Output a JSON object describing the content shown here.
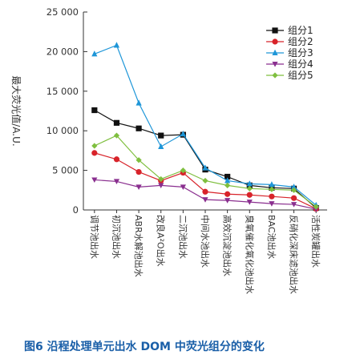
{
  "chart_data": {
    "type": "line",
    "ylabel": "最大荧光值/A.U.",
    "ylim": [
      0,
      25000
    ],
    "yticks": [
      0,
      5000,
      10000,
      15000,
      20000,
      25000
    ],
    "ytick_labels": [
      "0",
      "5 000",
      "10 000",
      "15 000",
      "20 000",
      "25 000"
    ],
    "categories": [
      "调节池出水",
      "初沉池出水",
      "ABR水解池出水",
      "改良A²O出水",
      "二沉池出水",
      "中间水池出水",
      "高效沉淀池出水",
      "臭氧催化氧化池出水",
      "BAC池出水",
      "反硝化深床滤池出水",
      "活性炭罐出水"
    ],
    "legend_position": "top-right",
    "series": [
      {
        "name": "组分1",
        "color": "#111111",
        "marker": "square",
        "values": [
          12600,
          11000,
          10300,
          9400,
          9500,
          5100,
          4200,
          3100,
          2800,
          2700,
          250
        ]
      },
      {
        "name": "组分2",
        "color": "#d8232a",
        "marker": "circle",
        "values": [
          7200,
          6400,
          4800,
          3700,
          4700,
          2300,
          2000,
          1900,
          1700,
          1500,
          150
        ]
      },
      {
        "name": "组分3",
        "color": "#1e96d8",
        "marker": "triangle",
        "values": [
          19700,
          20800,
          13500,
          8000,
          9600,
          5300,
          3700,
          3300,
          3200,
          2900,
          600
        ]
      },
      {
        "name": "组分4",
        "color": "#8a2f8f",
        "marker": "triangle-down",
        "values": [
          3800,
          3600,
          2900,
          3100,
          2900,
          1300,
          1200,
          1000,
          800,
          700,
          100
        ]
      },
      {
        "name": "组分5",
        "color": "#7fbf3f",
        "marker": "diamond",
        "values": [
          8100,
          9400,
          6300,
          3900,
          5000,
          3700,
          3100,
          2700,
          2600,
          2500,
          400
        ]
      }
    ]
  },
  "caption": "图6  沿程处理单元出水 DOM 中荧光组分的变化"
}
